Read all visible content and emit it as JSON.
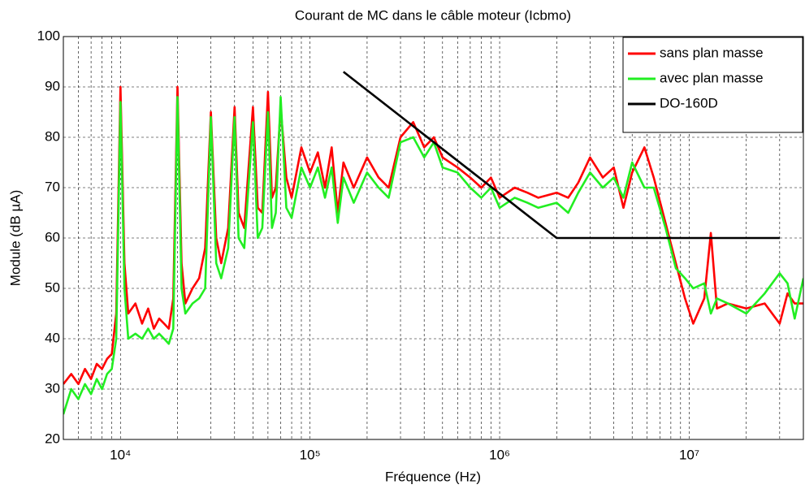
{
  "chart_data": {
    "type": "line",
    "title": "Courant de MC dans le câble moteur (Icbmo)",
    "xlabel": "Fréquence (Hz)",
    "ylabel": "Module (dB µA)",
    "xscale": "log",
    "xlim": [
      5000,
      40000000
    ],
    "ylim": [
      20,
      100
    ],
    "xticks": [
      {
        "value": 10000,
        "label": "10⁴"
      },
      {
        "value": 100000,
        "label": "10⁵"
      },
      {
        "value": 1000000,
        "label": "10⁶"
      },
      {
        "value": 10000000,
        "label": "10⁷"
      }
    ],
    "xminorticks": [
      5000,
      6000,
      7000,
      8000,
      9000,
      20000,
      30000,
      40000,
      50000,
      60000,
      70000,
      80000,
      90000,
      200000,
      300000,
      400000,
      500000,
      600000,
      700000,
      800000,
      900000,
      2000000,
      3000000,
      4000000,
      5000000,
      6000000,
      7000000,
      8000000,
      9000000,
      20000000,
      30000000,
      40000000
    ],
    "yticks": [
      20,
      30,
      40,
      50,
      60,
      70,
      80,
      90,
      100
    ],
    "grid": true,
    "legend": "upper right",
    "series": [
      {
        "name": "sans plan masse",
        "color": "#ff0000",
        "x": [
          5000,
          5500,
          6000,
          6500,
          7000,
          7500,
          8000,
          8500,
          9000,
          9500,
          10000,
          10500,
          11000,
          12000,
          13000,
          14000,
          15000,
          16000,
          17000,
          18000,
          19000,
          20000,
          21000,
          22000,
          24000,
          26000,
          28000,
          30000,
          32000,
          34000,
          37000,
          40000,
          42000,
          45000,
          50000,
          53000,
          56000,
          60000,
          63000,
          66000,
          70000,
          75000,
          80000,
          90000,
          100000,
          110000,
          120000,
          130000,
          140000,
          150000,
          170000,
          200000,
          230000,
          260000,
          300000,
          350000,
          400000,
          450000,
          500000,
          600000,
          700000,
          800000,
          900000,
          1000000,
          1200000,
          1400000,
          1600000,
          2000000,
          2300000,
          2600000,
          3000000,
          3500000,
          4000000,
          4500000,
          5000000,
          5800000,
          6500000,
          7500000,
          8500000,
          9500000,
          10500000,
          12000000,
          13000000,
          14000000,
          16000000,
          20000000,
          25000000,
          30000000,
          33000000,
          36000000,
          40000000
        ],
        "values": [
          31,
          33,
          31,
          34,
          32,
          35,
          34,
          36,
          37,
          45,
          90,
          55,
          45,
          47,
          43,
          46,
          42,
          44,
          43,
          42,
          48,
          90,
          55,
          47,
          50,
          52,
          58,
          85,
          60,
          55,
          62,
          86,
          65,
          62,
          86,
          66,
          65,
          89,
          68,
          70,
          86,
          72,
          68,
          78,
          73,
          77,
          70,
          78,
          65,
          75,
          70,
          76,
          72,
          70,
          80,
          83,
          78,
          80,
          76,
          74,
          72,
          70,
          72,
          68,
          70,
          69,
          68,
          69,
          68,
          71,
          76,
          72,
          74,
          66,
          73,
          78,
          72,
          63,
          55,
          48,
          43,
          48,
          61,
          46,
          47,
          46,
          47,
          43,
          49,
          47,
          47
        ]
      },
      {
        "name": "avec plan masse",
        "color": "#22ee22",
        "x": [
          5000,
          5500,
          6000,
          6500,
          7000,
          7500,
          8000,
          8500,
          9000,
          9500,
          10000,
          10500,
          11000,
          12000,
          13000,
          14000,
          15000,
          16000,
          17000,
          18000,
          19000,
          20000,
          21000,
          22000,
          24000,
          26000,
          28000,
          30000,
          32000,
          34000,
          37000,
          40000,
          42000,
          45000,
          50000,
          53000,
          56000,
          60000,
          63000,
          66000,
          70000,
          75000,
          80000,
          90000,
          100000,
          110000,
          120000,
          130000,
          140000,
          150000,
          170000,
          200000,
          230000,
          260000,
          300000,
          350000,
          400000,
          450000,
          500000,
          600000,
          700000,
          800000,
          900000,
          1000000,
          1200000,
          1400000,
          1600000,
          2000000,
          2300000,
          2600000,
          3000000,
          3500000,
          4000000,
          4500000,
          5000000,
          5800000,
          6500000,
          7500000,
          8500000,
          9500000,
          10500000,
          12000000,
          13000000,
          14000000,
          16000000,
          20000000,
          25000000,
          30000000,
          33000000,
          36000000,
          40000000
        ],
        "values": [
          25,
          30,
          28,
          31,
          29,
          32,
          30,
          33,
          34,
          40,
          87,
          50,
          40,
          41,
          40,
          42,
          40,
          41,
          40,
          39,
          42,
          88,
          50,
          45,
          47,
          48,
          50,
          84,
          55,
          52,
          58,
          84,
          60,
          58,
          83,
          60,
          62,
          85,
          62,
          65,
          88,
          66,
          64,
          74,
          70,
          74,
          68,
          74,
          63,
          72,
          67,
          73,
          70,
          68,
          79,
          80,
          76,
          79,
          74,
          73,
          70,
          68,
          70,
          66,
          68,
          67,
          66,
          67,
          65,
          69,
          73,
          70,
          72,
          68,
          75,
          70,
          70,
          62,
          54,
          52,
          50,
          51,
          45,
          48,
          47,
          45,
          49,
          53,
          51,
          44,
          52
        ]
      },
      {
        "name": "DO-160D",
        "color": "#000000",
        "x": [
          150000,
          2000000,
          30000000
        ],
        "values": [
          93,
          60,
          60
        ]
      }
    ]
  }
}
